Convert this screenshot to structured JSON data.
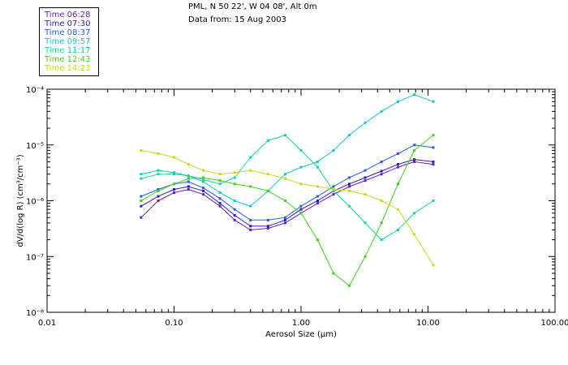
{
  "header": {
    "line1": "PML, N 50 22', W 04 08', Alt 0m",
    "line2": "Data from: 15 Aug 2003"
  },
  "legend": [
    {
      "label": "Time 06:28",
      "color": "#6a1fb0"
    },
    {
      "label": "Time 07:30",
      "color": "#2a18c8"
    },
    {
      "label": "Time 08:37",
      "color": "#1f5fe6"
    },
    {
      "label": "Time 09:57",
      "color": "#10c6d6"
    },
    {
      "label": "Time 11:17",
      "color": "#11d88e"
    },
    {
      "label": "Time 12:43",
      "color": "#3fd11a"
    },
    {
      "label": "Time 14:23",
      "color": "#c6d915"
    }
  ],
  "chart_data": {
    "type": "line",
    "title": "PML, N 50 22', W 04 08', Alt 0m",
    "subtitle": "Data from: 15 Aug 2003",
    "xlabel": "Aerosol Size (μm)",
    "ylabel": "dV/d(log R) (cm³/cm⁻³)",
    "xscale": "log",
    "yscale": "log",
    "xlim": [
      0.01,
      100
    ],
    "ylim": [
      1e-08,
      0.0001
    ],
    "x_ticks": [
      0.01,
      0.1,
      1,
      10,
      100
    ],
    "x_tick_labels": [
      "0.01",
      "0.10",
      "1.00",
      "10.00",
      "100.00"
    ],
    "y_ticks": [
      1e-08,
      1e-07,
      1e-06,
      1e-05,
      0.0001
    ],
    "y_tick_labels": [
      "10⁻⁸",
      "10⁻⁷",
      "10⁻⁶",
      "10⁻⁵",
      "10⁻⁴"
    ],
    "x": [
      0.055,
      0.075,
      0.1,
      0.13,
      0.17,
      0.23,
      0.3,
      0.4,
      0.55,
      0.75,
      1.0,
      1.35,
      1.8,
      2.4,
      3.2,
      4.3,
      5.8,
      7.8,
      11.0
    ],
    "series": [
      {
        "name": "Time 06:28",
        "color": "#6a1fb0",
        "values": [
          5e-07,
          1e-06,
          1.4e-06,
          1.6e-06,
          1.3e-06,
          8e-07,
          4.5e-07,
          3e-07,
          3.2e-07,
          4e-07,
          6e-07,
          9e-07,
          1.3e-06,
          1.8e-06,
          2.3e-06,
          3e-06,
          4e-06,
          5e-06,
          4.5e-06
        ]
      },
      {
        "name": "Time 07:30",
        "color": "#2a18c8",
        "values": [
          8e-07,
          1.2e-06,
          1.6e-06,
          1.8e-06,
          1.5e-06,
          9e-07,
          5.5e-07,
          3.5e-07,
          3.5e-07,
          4.5e-07,
          7e-07,
          1e-06,
          1.5e-06,
          2e-06,
          2.6e-06,
          3.4e-06,
          4.5e-06,
          5.5e-06,
          5e-06
        ]
      },
      {
        "name": "Time 08:37",
        "color": "#1f5fe6",
        "values": [
          1.2e-06,
          1.6e-06,
          2e-06,
          2.2e-06,
          1.7e-06,
          1.1e-06,
          7e-07,
          4.5e-07,
          4.5e-07,
          5e-07,
          8e-07,
          1.2e-06,
          1.8e-06,
          2.6e-06,
          3.5e-06,
          5e-06,
          7e-06,
          1e-05,
          9e-06
        ]
      },
      {
        "name": "Time 09:57",
        "color": "#10c6d6",
        "values": [
          3e-06,
          3.5e-06,
          3.2e-06,
          2.8e-06,
          2.2e-06,
          1.4e-06,
          1e-06,
          8e-07,
          1.5e-06,
          3e-06,
          4e-06,
          5e-06,
          8e-06,
          1.5e-05,
          2.5e-05,
          4e-05,
          6e-05,
          8e-05,
          6e-05
        ]
      },
      {
        "name": "Time 11:17",
        "color": "#11d88e",
        "values": [
          2.5e-06,
          3e-06,
          3e-06,
          2.8e-06,
          2.4e-06,
          2e-06,
          2.6e-06,
          6e-06,
          1.2e-05,
          1.5e-05,
          8e-06,
          4e-06,
          1.5e-06,
          8e-07,
          4e-07,
          2e-07,
          3e-07,
          6e-07,
          1e-06
        ]
      },
      {
        "name": "Time 12:43",
        "color": "#3fd11a",
        "values": [
          1e-06,
          1.5e-06,
          2e-06,
          2.5e-06,
          2.6e-06,
          2.3e-06,
          2e-06,
          1.8e-06,
          1.5e-06,
          1e-06,
          6e-07,
          2e-07,
          5e-08,
          3e-08,
          1e-07,
          4e-07,
          2e-06,
          8e-06,
          1.5e-05
        ]
      },
      {
        "name": "Time 14:23",
        "color": "#c6d915",
        "values": [
          8e-06,
          7e-06,
          6e-06,
          4.5e-06,
          3.5e-06,
          3e-06,
          3.2e-06,
          3.5e-06,
          3e-06,
          2.5e-06,
          2e-06,
          1.8e-06,
          1.6e-06,
          1.5e-06,
          1.3e-06,
          1e-06,
          7e-07,
          2.5e-07,
          7e-08
        ]
      }
    ]
  }
}
